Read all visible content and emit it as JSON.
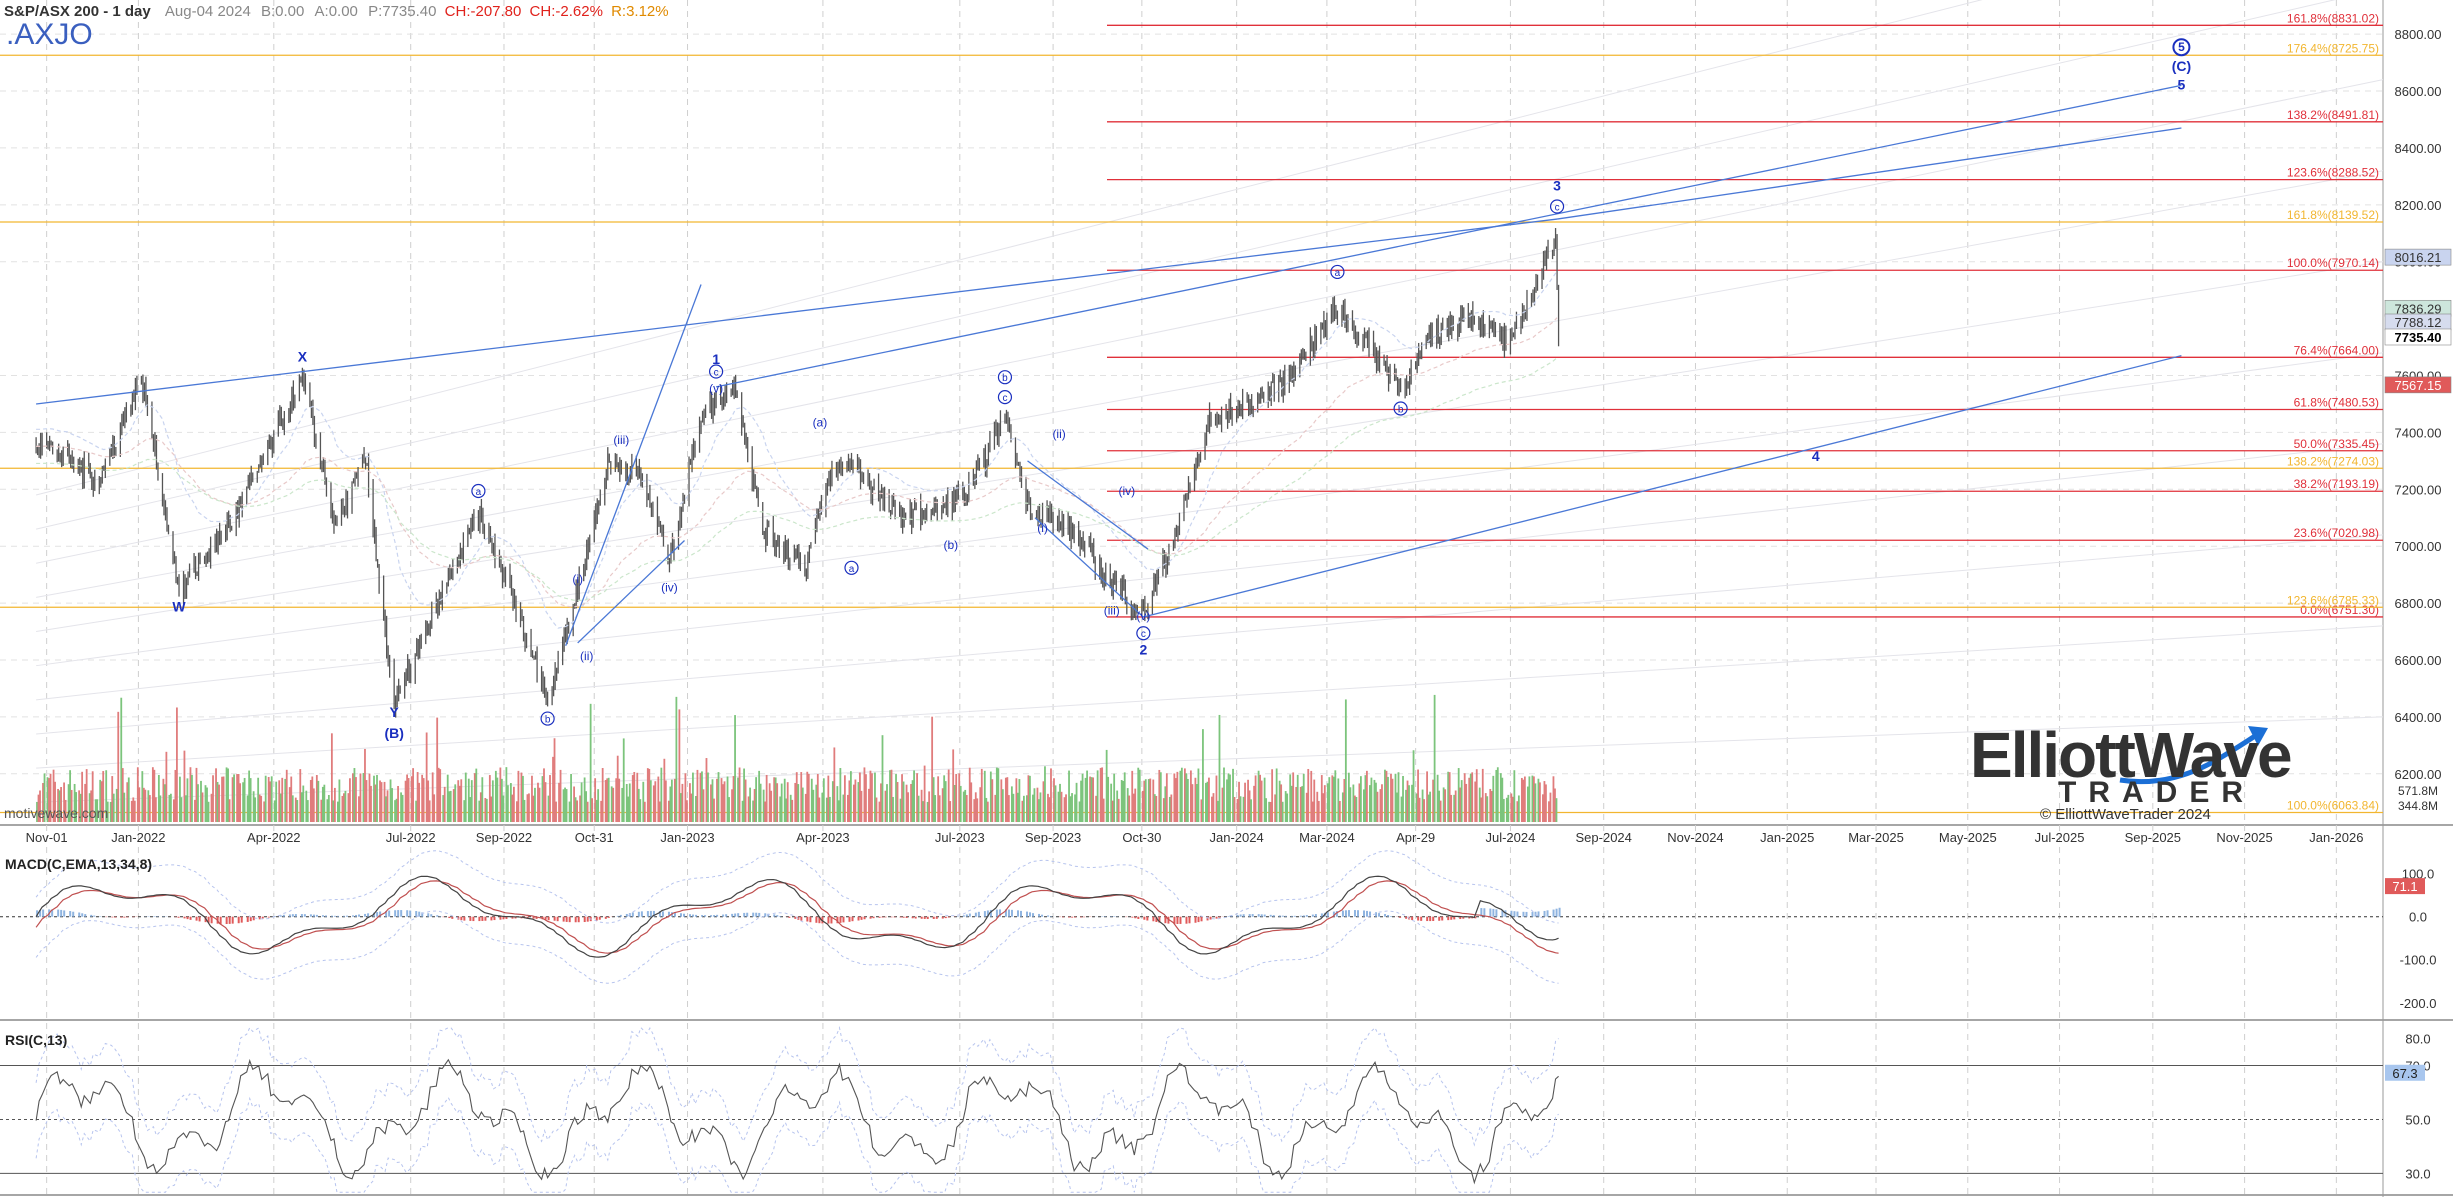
{
  "header": {
    "instrument": "S&P/ASX 200 - 1 day",
    "quote_date": "Aug-04 2024",
    "bid": "B:0.00",
    "ask": "A:0.00",
    "price": "P:7735.40",
    "change": "CH:-207.80",
    "change_pct": "CH:-2.62%",
    "range": "R:3.12%",
    "ticker": ".AXJO",
    "watermark": "motivewave.com"
  },
  "logo": {
    "line1": "ElliottWave",
    "line2": "TRADER",
    "copyright": "© ElliottWaveTrader 2024"
  },
  "chart_data": [
    {
      "type": "line",
      "title": "",
      "note": "daily OHLC price bars with volume histogram; Elliott Wave counts and Fibonacci levels",
      "x_axis": {
        "tick_labels": [
          "Nov-01",
          "Jan-2022",
          "Apr-2022",
          "Jul-2022",
          "Sep-2022",
          "Oct-31",
          "Jan-2023",
          "Apr-2023",
          "Jul-2023",
          "Sep-2023",
          "Oct-30",
          "Jan-2024",
          "Mar-2024",
          "Apr-29",
          "Jul-2024",
          "Sep-2024",
          "Nov-2024",
          "Jan-2025",
          "Mar-2025",
          "May-2025",
          "Jul-2025",
          "Sep-2025",
          "Nov-2025",
          "Jan-2026"
        ],
        "range": [
          "2021-10",
          "2026-02"
        ]
      },
      "y_axis": {
        "tick_labels": [
          "6200.00",
          "6400.00",
          "6600.00",
          "6800.00",
          "7000.00",
          "7200.00",
          "7400.00",
          "7600.00",
          "8000.00",
          "8200.00",
          "8400.00",
          "8600.00",
          "8800.00"
        ],
        "range": [
          6020,
          8920
        ],
        "grid": true
      },
      "price_series": {
        "x": [
          "2021-10-25",
          "2021-11-15",
          "2021-12-06",
          "2022-01-03",
          "2022-01-28",
          "2022-03-07",
          "2022-04-20",
          "2022-05-12",
          "2022-06-01",
          "2022-06-20",
          "2022-07-15",
          "2022-08-15",
          "2022-09-01",
          "2022-09-30",
          "2022-10-12",
          "2022-11-10",
          "2022-12-01",
          "2022-12-20",
          "2023-01-10",
          "2023-02-02",
          "2023-02-20",
          "2023-03-20",
          "2023-04-05",
          "2023-04-20",
          "2023-05-20",
          "2023-06-10",
          "2023-07-06",
          "2023-07-31",
          "2023-08-15",
          "2023-09-15",
          "2023-10-05",
          "2023-10-31",
          "2023-11-20",
          "2023-12-14",
          "2024-01-10",
          "2024-02-01",
          "2024-03-08",
          "2024-04-19",
          "2024-05-10",
          "2024-06-05",
          "2024-07-01",
          "2024-07-31",
          "2024-08-02"
        ],
        "close": [
          7380,
          7300,
          7230,
          7600,
          6840,
          7110,
          7590,
          7070,
          7300,
          6433,
          6750,
          7110,
          6900,
          6470,
          6690,
          7300,
          7250,
          6950,
          7460,
          7570,
          7060,
          6930,
          7240,
          7300,
          7100,
          7120,
          7180,
          7460,
          7150,
          7050,
          6900,
          6770,
          7020,
          7440,
          7500,
          7580,
          7840,
          7560,
          7740,
          7820,
          7700,
          8100,
          7735
        ]
      },
      "volume_axis": {
        "tick_labels": [
          "571.8M",
          "344.8M"
        ]
      },
      "last_price_labels": {
        "last": "7735.40",
        "upper_marker": "8016.21",
        "mid_marker_a": "7836.29",
        "mid_marker_b": "7788.12",
        "lower_marker": "7567.15"
      },
      "fib_levels_red": [
        {
          "label": "161.8%(8831.02)",
          "value": 8831.02
        },
        {
          "label": "138.2%(8491.81)",
          "value": 8491.81
        },
        {
          "label": "123.6%(8288.52)",
          "value": 8288.52
        },
        {
          "label": "100.0%(7970.14)",
          "value": 7970.14
        },
        {
          "label": "76.4%(7664.00)",
          "value": 7664.0
        },
        {
          "label": "61.8%(7480.53)",
          "value": 7480.53
        },
        {
          "label": "50.0%(7335.45)",
          "value": 7335.45
        },
        {
          "label": "38.2%(7193.19)",
          "value": 7193.19
        },
        {
          "label": "23.6%(7020.98)",
          "value": 7020.98
        },
        {
          "label": "0.0%(6751.30)",
          "value": 6751.3
        }
      ],
      "fib_levels_orange": [
        {
          "label": "176.4%(8725.75)",
          "value": 8725.75
        },
        {
          "label": "161.8%(8139.52)",
          "value": 8139.52
        },
        {
          "label": "138.2%(7274.03)",
          "value": 7274.03
        },
        {
          "label": "123.6%(6785.33)",
          "value": 6785.33
        },
        {
          "label": "100.0%(6063.84)",
          "value": 6063.84
        }
      ],
      "wave_labels": [
        {
          "text": "W",
          "x": "2022-01-28",
          "y": 6770
        },
        {
          "text": "X",
          "x": "2022-04-20",
          "y": 7650
        },
        {
          "text": "Y",
          "x": "2022-06-20",
          "y": 6400
        },
        {
          "text": "(B)",
          "x": "2022-06-20",
          "y": 6325
        },
        {
          "text": "(i)",
          "x": "2022-10-20",
          "y": 6870
        },
        {
          "text": "(ii)",
          "x": "2022-10-26",
          "y": 6600
        },
        {
          "text": "(iii)",
          "x": "2022-11-18",
          "y": 7360
        },
        {
          "text": "(iv)",
          "x": "2022-12-20",
          "y": 6840
        },
        {
          "text": "(v)",
          "x": "2023-01-20",
          "y": 7540
        },
        {
          "text": "1",
          "x": "2023-01-20",
          "y": 7640
        },
        {
          "text": "(a)",
          "x": "2023-03-30",
          "y": 7420
        },
        {
          "text": "(b)",
          "x": "2023-06-25",
          "y": 6990
        },
        {
          "text": "(i)",
          "x": "2023-08-25",
          "y": 7050
        },
        {
          "text": "(ii)",
          "x": "2023-09-05",
          "y": 7380
        },
        {
          "text": "(iii)",
          "x": "2023-10-10",
          "y": 6760
        },
        {
          "text": "(iv)",
          "x": "2023-10-20",
          "y": 7180
        },
        {
          "text": "(v)",
          "x": "2023-10-31",
          "y": 6740
        },
        {
          "text": "2",
          "x": "2023-10-31",
          "y": 6620
        },
        {
          "text": "3",
          "x": "2024-08-01",
          "y": 8250
        },
        {
          "text": "4",
          "x": "2025-01-20",
          "y": 7300
        },
        {
          "text": "5",
          "x": "2025-09-20",
          "y": 8605
        },
        {
          "text": "(C)",
          "x": "2025-09-20",
          "y": 8670
        }
      ],
      "circled_labels": [
        {
          "text": "a",
          "x": "2022-08-15",
          "y": 7180
        },
        {
          "text": "b",
          "x": "2022-09-30",
          "y": 6380
        },
        {
          "text": "c",
          "x": "2023-01-20",
          "y": 7600
        },
        {
          "text": "a",
          "x": "2023-04-20",
          "y": 6910
        },
        {
          "text": "b",
          "x": "2023-07-31",
          "y": 7580
        },
        {
          "text": "c",
          "x": "2023-07-31",
          "y": 7510
        },
        {
          "text": "c",
          "x": "2023-10-31",
          "y": 6680
        },
        {
          "text": "a",
          "x": "2024-03-08",
          "y": 7950
        },
        {
          "text": "b",
          "x": "2024-04-19",
          "y": 7470
        },
        {
          "text": "c",
          "x": "2024-08-01",
          "y": 8180
        },
        {
          "text": "5",
          "x": "2025-09-20",
          "y": 8740
        }
      ]
    },
    {
      "type": "line",
      "title": "MACD(C,EMA,13,34,8)",
      "y_axis": {
        "tick_labels": [
          "100.0",
          "0.0",
          "-100.0",
          "-200.0"
        ],
        "range": [
          -240,
          155
        ]
      },
      "current_value_label": "71.1"
    },
    {
      "type": "line",
      "title": "RSI(C,13)",
      "y_axis": {
        "tick_labels": [
          "80.0",
          "70.0",
          "50.0",
          "30.0"
        ],
        "range": [
          22,
          85
        ]
      },
      "current_value_label": "67.3"
    }
  ],
  "colors": {
    "fib_red": "#e0303a",
    "fib_orange": "#f2b630",
    "channel_blue": "#4a78d6",
    "wave_blue": "#1a2fbf",
    "price": "#555555",
    "volume_up": "#7cc47c",
    "volume_down": "#e07c7c",
    "macd_hist_pos": "#8fb4e0",
    "macd_hist_neg": "#e05a5a"
  }
}
